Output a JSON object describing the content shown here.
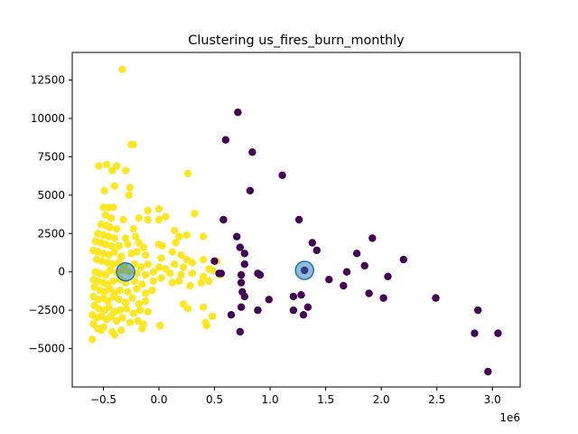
{
  "chart_data": {
    "type": "scatter",
    "title": "Clustering us_fires_burn_monthly",
    "xlabel": "",
    "ylabel": "",
    "x_offset_label": "1e6",
    "xlim": [
      -0.78,
      3.25
    ],
    "ylim": [
      -7500,
      14300
    ],
    "x_ticks": [
      -0.5,
      0.0,
      0.5,
      1.0,
      1.5,
      2.0,
      2.5,
      3.0
    ],
    "x_tick_labels": [
      "−0.5",
      "0.0",
      "0.5",
      "1.0",
      "1.5",
      "2.0",
      "2.5",
      "3.0"
    ],
    "y_ticks": [
      -5000,
      -2500,
      0,
      2500,
      5000,
      7500,
      10000,
      12500
    ],
    "y_tick_labels": [
      "−5000",
      "−2500",
      "0",
      "2500",
      "5000",
      "7500",
      "10000",
      "12500"
    ],
    "grid": false,
    "legend": "none",
    "series": [
      {
        "color": "#fde725",
        "points": [
          [
            -0.33,
            13200
          ],
          [
            -0.25,
            8300
          ],
          [
            -0.23,
            8300
          ],
          [
            -0.54,
            6900
          ],
          [
            -0.47,
            7000
          ],
          [
            -0.38,
            6900
          ],
          [
            -0.3,
            6600
          ],
          [
            -0.42,
            6600
          ],
          [
            0.26,
            6400
          ],
          [
            -0.4,
            5600
          ],
          [
            -0.26,
            5500
          ],
          [
            -0.49,
            5300
          ],
          [
            -0.27,
            5000
          ],
          [
            -0.5,
            4200
          ],
          [
            -0.45,
            4200
          ],
          [
            -0.41,
            4200
          ],
          [
            0.0,
            4100
          ],
          [
            -0.1,
            4000
          ],
          [
            -0.48,
            3700
          ],
          [
            -0.43,
            3500
          ],
          [
            -0.32,
            3400
          ],
          [
            -0.18,
            3500
          ],
          [
            -0.1,
            3400
          ],
          [
            0.0,
            3400
          ],
          [
            0.06,
            3600
          ],
          [
            0.32,
            3800
          ],
          [
            -0.52,
            3100
          ],
          [
            -0.47,
            3000
          ],
          [
            -0.44,
            2900
          ],
          [
            -0.38,
            2800
          ],
          [
            -0.23,
            2800
          ],
          [
            -0.55,
            2500
          ],
          [
            -0.5,
            2400
          ],
          [
            -0.45,
            2300
          ],
          [
            -0.4,
            2200
          ],
          [
            -0.3,
            2200
          ],
          [
            -0.21,
            2300
          ],
          [
            0.14,
            2700
          ],
          [
            0.18,
            2300
          ],
          [
            0.25,
            2400
          ],
          [
            0.4,
            2300
          ],
          [
            -0.57,
            2000
          ],
          [
            -0.52,
            1900
          ],
          [
            -0.48,
            1800
          ],
          [
            -0.43,
            1700
          ],
          [
            -0.36,
            1700
          ],
          [
            -0.28,
            1800
          ],
          [
            -0.18,
            1900
          ],
          [
            -0.14,
            1600
          ],
          [
            0.0,
            1800
          ],
          [
            0.03,
            1700
          ],
          [
            0.15,
            1900
          ],
          [
            -0.59,
            1400
          ],
          [
            -0.55,
            1300
          ],
          [
            -0.5,
            1200
          ],
          [
            -0.45,
            1100
          ],
          [
            -0.4,
            1300
          ],
          [
            -0.34,
            1000
          ],
          [
            -0.25,
            1200
          ],
          [
            -0.2,
            1300
          ],
          [
            -0.12,
            1100
          ],
          [
            0.02,
            900
          ],
          [
            0.12,
            1300
          ],
          [
            0.2,
            1100
          ],
          [
            0.25,
            800
          ],
          [
            0.4,
            800
          ],
          [
            0.52,
            700
          ],
          [
            -0.56,
            800
          ],
          [
            -0.51,
            700
          ],
          [
            -0.46,
            600
          ],
          [
            -0.41,
            500
          ],
          [
            -0.36,
            600
          ],
          [
            -0.31,
            400
          ],
          [
            -0.22,
            500
          ],
          [
            -0.16,
            300
          ],
          [
            -0.1,
            500
          ],
          [
            0.0,
            300
          ],
          [
            0.06,
            200
          ],
          [
            0.14,
            500
          ],
          [
            0.22,
            300
          ],
          [
            0.3,
            600
          ],
          [
            0.45,
            200
          ],
          [
            -0.57,
            0
          ],
          [
            -0.53,
            -100
          ],
          [
            -0.48,
            -200
          ],
          [
            -0.44,
            100
          ],
          [
            -0.38,
            -50
          ],
          [
            -0.33,
            100
          ],
          [
            -0.27,
            0
          ],
          [
            -0.2,
            -100
          ],
          [
            -0.12,
            -200
          ],
          [
            -0.05,
            0
          ],
          [
            0.1,
            -100
          ],
          [
            0.2,
            -200
          ],
          [
            0.3,
            -100
          ],
          [
            0.4,
            -300
          ],
          [
            0.48,
            100
          ],
          [
            0.55,
            -200
          ],
          [
            -0.59,
            -500
          ],
          [
            -0.55,
            -600
          ],
          [
            -0.5,
            -700
          ],
          [
            -0.46,
            -800
          ],
          [
            -0.41,
            -600
          ],
          [
            -0.35,
            -500
          ],
          [
            -0.3,
            -700
          ],
          [
            -0.22,
            -600
          ],
          [
            -0.15,
            -800
          ],
          [
            -0.05,
            -600
          ],
          [
            0.02,
            -400
          ],
          [
            0.12,
            -700
          ],
          [
            0.18,
            -600
          ],
          [
            0.28,
            -900
          ],
          [
            0.38,
            -700
          ],
          [
            0.45,
            -600
          ],
          [
            -0.58,
            -1000
          ],
          [
            -0.53,
            -1200
          ],
          [
            -0.49,
            -1300
          ],
          [
            -0.44,
            -1100
          ],
          [
            -0.4,
            -1400
          ],
          [
            -0.35,
            -1200
          ],
          [
            -0.28,
            -1300
          ],
          [
            -0.2,
            -1100
          ],
          [
            -0.12,
            -1400
          ],
          [
            -0.06,
            -1200
          ],
          [
            -0.59,
            -1600
          ],
          [
            -0.55,
            -1800
          ],
          [
            -0.5,
            -1700
          ],
          [
            -0.46,
            -1900
          ],
          [
            -0.41,
            -1600
          ],
          [
            -0.36,
            -1800
          ],
          [
            -0.3,
            -2000
          ],
          [
            -0.24,
            -1700
          ],
          [
            -0.18,
            -2100
          ],
          [
            -0.12,
            -1900
          ],
          [
            0.22,
            -2100
          ],
          [
            0.26,
            -2400
          ],
          [
            -0.58,
            -2200
          ],
          [
            -0.54,
            -2400
          ],
          [
            -0.49,
            -2500
          ],
          [
            -0.45,
            -2300
          ],
          [
            -0.4,
            -2600
          ],
          [
            -0.35,
            -2500
          ],
          [
            -0.29,
            -2400
          ],
          [
            -0.23,
            -2700
          ],
          [
            -0.17,
            -2500
          ],
          [
            -0.1,
            -2600
          ],
          [
            0.4,
            -2300
          ],
          [
            0.48,
            -2900
          ],
          [
            -0.6,
            -2800
          ],
          [
            -0.56,
            -3000
          ],
          [
            -0.52,
            -2900
          ],
          [
            -0.47,
            -3100
          ],
          [
            -0.43,
            -2900
          ],
          [
            -0.38,
            -3200
          ],
          [
            -0.33,
            -3000
          ],
          [
            -0.26,
            -3300
          ],
          [
            -0.19,
            -3200
          ],
          [
            -0.14,
            -3400
          ],
          [
            0.01,
            -3500
          ],
          [
            0.42,
            -3300
          ],
          [
            0.43,
            -3500
          ],
          [
            -0.59,
            -3400
          ],
          [
            -0.55,
            -3700
          ],
          [
            -0.5,
            -3600
          ],
          [
            -0.42,
            -3900
          ],
          [
            -0.4,
            -4100
          ],
          [
            -0.34,
            -3800
          ],
          [
            -0.15,
            -3700
          ],
          [
            -0.6,
            -4400
          ],
          [
            -0.52,
            -3800
          ]
        ]
      },
      {
        "color": "#440154",
        "points": [
          [
            0.71,
            10400
          ],
          [
            0.6,
            8600
          ],
          [
            0.84,
            7800
          ],
          [
            1.11,
            6300
          ],
          [
            0.82,
            5300
          ],
          [
            0.58,
            3400
          ],
          [
            1.26,
            3400
          ],
          [
            0.7,
            2300
          ],
          [
            0.73,
            1600
          ],
          [
            0.77,
            1200
          ],
          [
            0.77,
            500
          ],
          [
            1.38,
            1900
          ],
          [
            1.42,
            1400
          ],
          [
            1.92,
            2200
          ],
          [
            1.78,
            1200
          ],
          [
            2.2,
            800
          ],
          [
            1.85,
            400
          ],
          [
            1.69,
            0
          ],
          [
            1.53,
            -500
          ],
          [
            2.06,
            -300
          ],
          [
            0.5,
            700
          ],
          [
            0.54,
            -100
          ],
          [
            0.56,
            -100
          ],
          [
            0.74,
            -200
          ],
          [
            0.89,
            -100
          ],
          [
            0.91,
            -200
          ],
          [
            0.74,
            -700
          ],
          [
            0.75,
            -1300
          ],
          [
            0.77,
            -1600
          ],
          [
            0.99,
            -1800
          ],
          [
            1.21,
            -1600
          ],
          [
            1.28,
            -1500
          ],
          [
            1.34,
            -2300
          ],
          [
            1.21,
            -2500
          ],
          [
            1.3,
            -2800
          ],
          [
            1.66,
            -900
          ],
          [
            1.89,
            -1400
          ],
          [
            2.02,
            -1700
          ],
          [
            2.49,
            -1700
          ],
          [
            0.89,
            -2500
          ],
          [
            0.65,
            -2800
          ],
          [
            0.74,
            -2300
          ],
          [
            0.73,
            -3900
          ],
          [
            2.87,
            -2500
          ],
          [
            2.84,
            -4000
          ],
          [
            3.05,
            -4000
          ],
          [
            2.96,
            -6500
          ],
          [
            1.31,
            100
          ]
        ]
      }
    ],
    "centers": {
      "color": "#1f77b4",
      "points": [
        [
          -0.3,
          0
        ],
        [
          1.31,
          100
        ]
      ]
    }
  }
}
